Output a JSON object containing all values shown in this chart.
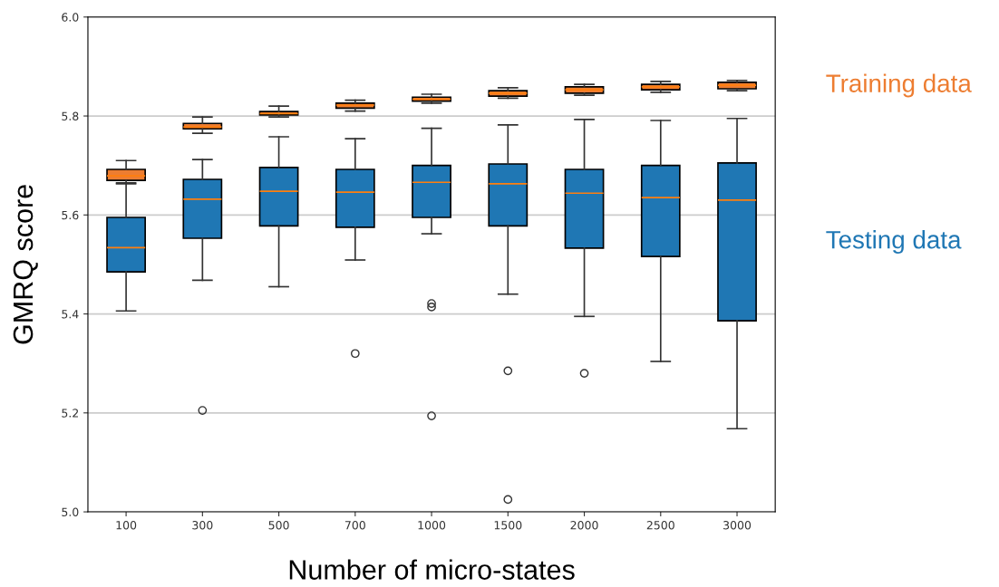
{
  "chart_data": {
    "type": "box",
    "xlabel": "Number of micro-states",
    "ylabel": "GMRQ score",
    "categories": [
      "100",
      "300",
      "500",
      "700",
      "1000",
      "1500",
      "2000",
      "2500",
      "3000"
    ],
    "ylim": [
      5.0,
      6.0
    ],
    "yticks": [
      {
        "value": 5.0,
        "label": "5.0"
      },
      {
        "value": 5.2,
        "label": "5.2"
      },
      {
        "value": 5.4,
        "label": "5.4"
      },
      {
        "value": 5.6,
        "label": "5.6"
      },
      {
        "value": 5.8,
        "label": "5.8"
      },
      {
        "value": 6.0,
        "label": "6.0"
      }
    ],
    "grid": "y",
    "series": [
      {
        "name": "Testing data",
        "color": "#1f77b4",
        "boxes": [
          {
            "low": 5.406,
            "q1": 5.485,
            "median": 5.534,
            "q3": 5.595,
            "high": 5.663
          },
          {
            "low": 5.468,
            "q1": 5.553,
            "median": 5.632,
            "q3": 5.672,
            "high": 5.712,
            "outliers": [
              5.205
            ]
          },
          {
            "low": 5.455,
            "q1": 5.578,
            "median": 5.648,
            "q3": 5.696,
            "high": 5.758
          },
          {
            "low": 5.509,
            "q1": 5.575,
            "median": 5.646,
            "q3": 5.692,
            "high": 5.754,
            "outliers": [
              5.32
            ]
          },
          {
            "low": 5.562,
            "q1": 5.595,
            "median": 5.666,
            "q3": 5.7,
            "high": 5.775,
            "outliers": [
              5.421,
              5.414,
              5.194
            ]
          },
          {
            "low": 5.44,
            "q1": 5.578,
            "median": 5.663,
            "q3": 5.703,
            "high": 5.782,
            "outliers": [
              5.285,
              5.025
            ]
          },
          {
            "low": 5.395,
            "q1": 5.533,
            "median": 5.644,
            "q3": 5.692,
            "high": 5.793,
            "outliers": [
              5.28
            ]
          },
          {
            "low": 5.304,
            "q1": 5.516,
            "median": 5.635,
            "q3": 5.7,
            "high": 5.791
          },
          {
            "low": 5.168,
            "q1": 5.386,
            "median": 5.63,
            "q3": 5.705,
            "high": 5.795
          }
        ]
      },
      {
        "name": "Training data",
        "color": "#ed7d31",
        "boxes": [
          {
            "low": 5.665,
            "q1": 5.67,
            "median": 5.679,
            "q3": 5.692,
            "high": 5.71
          },
          {
            "low": 5.765,
            "q1": 5.774,
            "median": 5.778,
            "q3": 5.785,
            "high": 5.798
          },
          {
            "low": 5.798,
            "q1": 5.802,
            "median": 5.805,
            "q3": 5.809,
            "high": 5.82
          },
          {
            "low": 5.81,
            "q1": 5.816,
            "median": 5.822,
            "q3": 5.826,
            "high": 5.832
          },
          {
            "low": 5.826,
            "q1": 5.83,
            "median": 5.834,
            "q3": 5.838,
            "high": 5.844
          },
          {
            "low": 5.836,
            "q1": 5.84,
            "median": 5.846,
            "q3": 5.851,
            "high": 5.857
          },
          {
            "low": 5.842,
            "q1": 5.846,
            "median": 5.853,
            "q3": 5.859,
            "high": 5.864
          },
          {
            "low": 5.848,
            "q1": 5.853,
            "median": 5.859,
            "q3": 5.864,
            "high": 5.87
          },
          {
            "low": 5.851,
            "q1": 5.855,
            "median": 5.862,
            "q3": 5.868,
            "high": 5.872
          }
        ]
      }
    ]
  }
}
